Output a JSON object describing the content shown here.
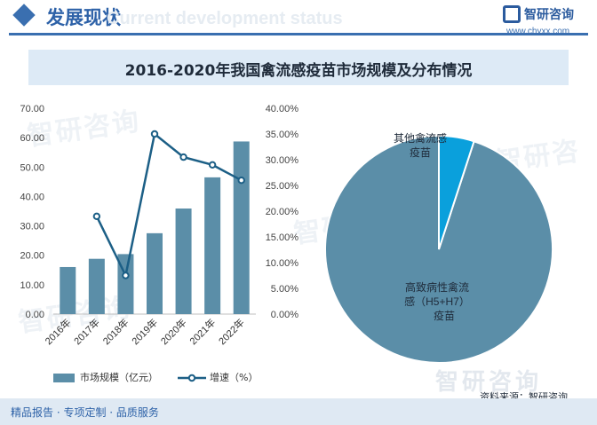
{
  "header": {
    "title": "发展现状",
    "title_en_watermark": "Current development status",
    "logo_text": "智研咨询",
    "logo_url": "www.chyxx.com"
  },
  "chart_title": "2016-2020年我国禽流感疫苗市场规模及分布情况",
  "source_text": "资料来源：智研咨询",
  "footer_text": "精品报告 · 专项定制 · 品质服务",
  "watermark_text": "智研咨询",
  "colors": {
    "header_blue": "#2e62a8",
    "bar": "#5b8ea8",
    "line": "#1c5f86",
    "pie_main": "#5b8ea8",
    "pie_other": "#0aa0dc",
    "title_band": "#ddeaf6"
  },
  "chart_data": [
    {
      "type": "bar",
      "categories": [
        "2016年",
        "2017年",
        "2018年",
        "2019年",
        "2020年",
        "2021年",
        "2022年"
      ],
      "series": [
        {
          "name": "市场规模（亿元）",
          "type": "bar",
          "axis": "left",
          "values": [
            16.0,
            18.8,
            20.4,
            27.5,
            35.9,
            46.5,
            58.7
          ]
        },
        {
          "name": "增速（%）",
          "type": "line",
          "axis": "right",
          "values": [
            null,
            19.0,
            7.5,
            35.0,
            30.5,
            29.0,
            26.0
          ]
        }
      ],
      "left_axis": {
        "ylim": [
          0,
          70
        ],
        "ticks": [
          "0.00",
          "10.00",
          "20.00",
          "30.00",
          "40.00",
          "50.00",
          "60.00",
          "70.00"
        ]
      },
      "right_axis": {
        "ylim": [
          0,
          40
        ],
        "ticks": [
          "0.00%",
          "5.00%",
          "10.00%",
          "15.00%",
          "20.00%",
          "25.00%",
          "30.00%",
          "35.00%",
          "40.00%"
        ]
      },
      "legend_position": "bottom"
    },
    {
      "type": "pie",
      "slices": [
        {
          "label": "高致病性禽流感（H5+H7）疫苗",
          "label_lines": [
            "高致病性禽流",
            "感（H5+H7）",
            "疫苗"
          ],
          "value": 0.95
        },
        {
          "label": "其他禽流感疫苗",
          "label_lines": [
            "其他禽流感",
            "疫苗"
          ],
          "value": 0.05
        }
      ]
    }
  ]
}
